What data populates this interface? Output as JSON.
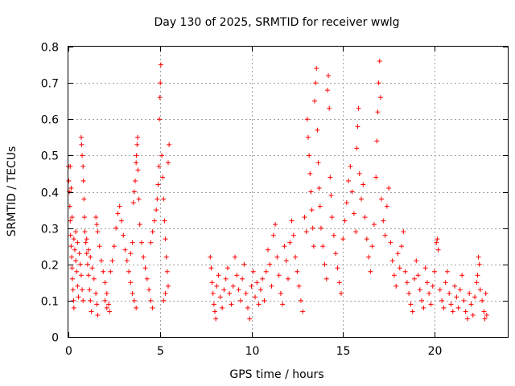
{
  "chart_data": {
    "type": "scatter",
    "title": "Day 130 of 2025, SRMTID for receiver wwlg",
    "xlabel": "GPS time / hours",
    "ylabel": "SRMTID / TECUs",
    "xlim": [
      0,
      24
    ],
    "ylim": [
      0,
      0.8
    ],
    "xticks": [
      0,
      5,
      10,
      15,
      20
    ],
    "yticks": [
      0,
      0.1,
      0.2,
      0.3,
      0.4,
      0.5,
      0.6,
      0.7,
      0.8
    ],
    "xtick_labels": [
      "0",
      "5",
      "10",
      "15",
      "20"
    ],
    "ytick_labels": [
      "0",
      "0.1",
      "0.2",
      "0.3",
      "0.4",
      "0.5",
      "0.6",
      "0.7",
      "0.8"
    ],
    "grid": true,
    "marker": "+",
    "color": "#ff0000",
    "series": [
      {
        "name": "wwlg",
        "points": [
          [
            0.0,
            0.47
          ],
          [
            0.02,
            0.43
          ],
          [
            0.05,
            0.4
          ],
          [
            0.08,
            0.36
          ],
          [
            0.1,
            0.32
          ],
          [
            0.12,
            0.28
          ],
          [
            0.15,
            0.25
          ],
          [
            0.18,
            0.22
          ],
          [
            0.2,
            0.19
          ],
          [
            0.22,
            0.16
          ],
          [
            0.25,
            0.13
          ],
          [
            0.28,
            0.1
          ],
          [
            0.3,
            0.08
          ],
          [
            0.1,
            0.47
          ],
          [
            0.15,
            0.41
          ],
          [
            0.2,
            0.33
          ],
          [
            0.3,
            0.27
          ],
          [
            0.35,
            0.24
          ],
          [
            0.4,
            0.21
          ],
          [
            0.45,
            0.18
          ],
          [
            0.5,
            0.14
          ],
          [
            0.55,
            0.11
          ],
          [
            0.4,
            0.29
          ],
          [
            0.5,
            0.26
          ],
          [
            0.6,
            0.23
          ],
          [
            0.65,
            0.2
          ],
          [
            0.7,
            0.17
          ],
          [
            0.75,
            0.13
          ],
          [
            0.8,
            0.1
          ],
          [
            0.7,
            0.55
          ],
          [
            0.72,
            0.53
          ],
          [
            0.75,
            0.5
          ],
          [
            0.8,
            0.47
          ],
          [
            0.82,
            0.43
          ],
          [
            0.85,
            0.38
          ],
          [
            0.88,
            0.33
          ],
          [
            0.9,
            0.29
          ],
          [
            0.95,
            0.26
          ],
          [
            1.0,
            0.23
          ],
          [
            1.05,
            0.2
          ],
          [
            1.1,
            0.17
          ],
          [
            1.15,
            0.13
          ],
          [
            1.2,
            0.1
          ],
          [
            1.25,
            0.07
          ],
          [
            1.0,
            0.27
          ],
          [
            1.1,
            0.24
          ],
          [
            1.2,
            0.22
          ],
          [
            1.3,
            0.19
          ],
          [
            1.4,
            0.16
          ],
          [
            1.5,
            0.12
          ],
          [
            1.55,
            0.09
          ],
          [
            1.6,
            0.06
          ],
          [
            1.5,
            0.33
          ],
          [
            1.55,
            0.31
          ],
          [
            1.6,
            0.29
          ],
          [
            1.7,
            0.25
          ],
          [
            1.8,
            0.21
          ],
          [
            1.9,
            0.18
          ],
          [
            2.0,
            0.15
          ],
          [
            2.1,
            0.12
          ],
          [
            2.2,
            0.09
          ],
          [
            2.25,
            0.07
          ],
          [
            2.0,
            0.1
          ],
          [
            2.1,
            0.08
          ],
          [
            2.3,
            0.18
          ],
          [
            2.4,
            0.21
          ],
          [
            2.5,
            0.25
          ],
          [
            2.6,
            0.3
          ],
          [
            2.7,
            0.34
          ],
          [
            2.8,
            0.36
          ],
          [
            2.9,
            0.32
          ],
          [
            3.0,
            0.28
          ],
          [
            3.1,
            0.24
          ],
          [
            3.2,
            0.21
          ],
          [
            3.3,
            0.18
          ],
          [
            3.4,
            0.15
          ],
          [
            3.5,
            0.12
          ],
          [
            3.6,
            0.1
          ],
          [
            3.7,
            0.08
          ],
          [
            3.4,
            0.23
          ],
          [
            3.5,
            0.26
          ],
          [
            3.55,
            0.37
          ],
          [
            3.6,
            0.4
          ],
          [
            3.65,
            0.43
          ],
          [
            3.7,
            0.48
          ],
          [
            3.72,
            0.5
          ],
          [
            3.75,
            0.53
          ],
          [
            3.78,
            0.55
          ],
          [
            3.8,
            0.46
          ],
          [
            3.85,
            0.38
          ],
          [
            3.9,
            0.31
          ],
          [
            4.0,
            0.26
          ],
          [
            4.1,
            0.22
          ],
          [
            4.2,
            0.19
          ],
          [
            4.3,
            0.16
          ],
          [
            4.4,
            0.13
          ],
          [
            4.5,
            0.1
          ],
          [
            4.6,
            0.08
          ],
          [
            4.5,
            0.26
          ],
          [
            4.6,
            0.29
          ],
          [
            4.7,
            0.32
          ],
          [
            4.8,
            0.35
          ],
          [
            4.85,
            0.38
          ],
          [
            4.9,
            0.42
          ],
          [
            4.95,
            0.47
          ],
          [
            4.97,
            0.6
          ],
          [
            5.0,
            0.66
          ],
          [
            5.02,
            0.7
          ],
          [
            5.05,
            0.75
          ],
          [
            5.1,
            0.5
          ],
          [
            5.15,
            0.44
          ],
          [
            5.2,
            0.38
          ],
          [
            5.25,
            0.32
          ],
          [
            5.3,
            0.27
          ],
          [
            5.35,
            0.22
          ],
          [
            5.4,
            0.18
          ],
          [
            5.45,
            0.14
          ],
          [
            5.5,
            0.53
          ],
          [
            5.45,
            0.48
          ],
          [
            5.3,
            0.12
          ],
          [
            5.2,
            0.1
          ],
          [
            7.75,
            0.22
          ],
          [
            7.8,
            0.19
          ],
          [
            7.85,
            0.15
          ],
          [
            7.9,
            0.12
          ],
          [
            7.95,
            0.09
          ],
          [
            8.0,
            0.07
          ],
          [
            8.05,
            0.05
          ],
          [
            8.1,
            0.14
          ],
          [
            8.2,
            0.17
          ],
          [
            8.3,
            0.11
          ],
          [
            8.4,
            0.08
          ],
          [
            8.5,
            0.13
          ],
          [
            8.6,
            0.16
          ],
          [
            8.7,
            0.19
          ],
          [
            8.8,
            0.12
          ],
          [
            8.9,
            0.09
          ],
          [
            9.0,
            0.14
          ],
          [
            9.1,
            0.22
          ],
          [
            9.2,
            0.17
          ],
          [
            9.3,
            0.13
          ],
          [
            9.4,
            0.1
          ],
          [
            9.5,
            0.16
          ],
          [
            9.6,
            0.2
          ],
          [
            9.7,
            0.12
          ],
          [
            9.8,
            0.08
          ],
          [
            9.9,
            0.05
          ],
          [
            10.0,
            0.14
          ],
          [
            10.1,
            0.18
          ],
          [
            10.2,
            0.11
          ],
          [
            10.3,
            0.15
          ],
          [
            10.4,
            0.09
          ],
          [
            10.5,
            0.13
          ],
          [
            10.6,
            0.16
          ],
          [
            10.7,
            0.1
          ],
          [
            10.8,
            0.18
          ],
          [
            10.9,
            0.24
          ],
          [
            11.0,
            0.2
          ],
          [
            11.1,
            0.14
          ],
          [
            11.2,
            0.28
          ],
          [
            11.3,
            0.31
          ],
          [
            11.4,
            0.22
          ],
          [
            11.5,
            0.17
          ],
          [
            11.6,
            0.12
          ],
          [
            11.7,
            0.09
          ],
          [
            11.8,
            0.25
          ],
          [
            11.9,
            0.21
          ],
          [
            12.0,
            0.16
          ],
          [
            12.1,
            0.26
          ],
          [
            12.2,
            0.32
          ],
          [
            12.3,
            0.28
          ],
          [
            12.4,
            0.22
          ],
          [
            12.5,
            0.18
          ],
          [
            12.6,
            0.14
          ],
          [
            12.7,
            0.1
          ],
          [
            12.8,
            0.07
          ],
          [
            12.9,
            0.33
          ],
          [
            13.0,
            0.29
          ],
          [
            13.05,
            0.6
          ],
          [
            13.1,
            0.55
          ],
          [
            13.15,
            0.5
          ],
          [
            13.2,
            0.45
          ],
          [
            13.25,
            0.4
          ],
          [
            13.3,
            0.35
          ],
          [
            13.35,
            0.3
          ],
          [
            13.4,
            0.25
          ],
          [
            13.45,
            0.65
          ],
          [
            13.5,
            0.7
          ],
          [
            13.55,
            0.74
          ],
          [
            13.6,
            0.57
          ],
          [
            13.65,
            0.48
          ],
          [
            13.7,
            0.41
          ],
          [
            13.75,
            0.36
          ],
          [
            13.8,
            0.3
          ],
          [
            13.9,
            0.25
          ],
          [
            14.0,
            0.2
          ],
          [
            14.1,
            0.16
          ],
          [
            14.15,
            0.68
          ],
          [
            14.2,
            0.72
          ],
          [
            14.25,
            0.63
          ],
          [
            14.3,
            0.44
          ],
          [
            14.35,
            0.39
          ],
          [
            14.4,
            0.33
          ],
          [
            14.5,
            0.28
          ],
          [
            14.6,
            0.23
          ],
          [
            14.7,
            0.19
          ],
          [
            14.8,
            0.15
          ],
          [
            14.9,
            0.12
          ],
          [
            15.0,
            0.27
          ],
          [
            15.1,
            0.32
          ],
          [
            15.2,
            0.37
          ],
          [
            15.3,
            0.43
          ],
          [
            15.4,
            0.47
          ],
          [
            15.5,
            0.4
          ],
          [
            15.6,
            0.34
          ],
          [
            15.7,
            0.29
          ],
          [
            15.75,
            0.52
          ],
          [
            15.8,
            0.58
          ],
          [
            15.85,
            0.63
          ],
          [
            15.9,
            0.45
          ],
          [
            16.0,
            0.38
          ],
          [
            16.1,
            0.42
          ],
          [
            16.2,
            0.33
          ],
          [
            16.3,
            0.27
          ],
          [
            16.4,
            0.22
          ],
          [
            16.5,
            0.18
          ],
          [
            16.6,
            0.25
          ],
          [
            16.7,
            0.31
          ],
          [
            16.8,
            0.44
          ],
          [
            16.85,
            0.54
          ],
          [
            16.9,
            0.62
          ],
          [
            16.95,
            0.7
          ],
          [
            17.0,
            0.76
          ],
          [
            17.05,
            0.66
          ],
          [
            17.1,
            0.38
          ],
          [
            17.2,
            0.32
          ],
          [
            17.3,
            0.28
          ],
          [
            17.4,
            0.36
          ],
          [
            17.5,
            0.41
          ],
          [
            17.6,
            0.26
          ],
          [
            17.7,
            0.21
          ],
          [
            17.8,
            0.17
          ],
          [
            17.9,
            0.14
          ],
          [
            18.0,
            0.23
          ],
          [
            18.1,
            0.19
          ],
          [
            18.2,
            0.25
          ],
          [
            18.3,
            0.29
          ],
          [
            18.4,
            0.18
          ],
          [
            18.5,
            0.15
          ],
          [
            18.6,
            0.12
          ],
          [
            18.7,
            0.09
          ],
          [
            18.8,
            0.07
          ],
          [
            18.9,
            0.16
          ],
          [
            19.0,
            0.21
          ],
          [
            19.1,
            0.17
          ],
          [
            19.2,
            0.13
          ],
          [
            19.3,
            0.1
          ],
          [
            19.4,
            0.08
          ],
          [
            19.5,
            0.19
          ],
          [
            19.6,
            0.15
          ],
          [
            19.7,
            0.12
          ],
          [
            19.8,
            0.09
          ],
          [
            19.9,
            0.14
          ],
          [
            20.0,
            0.18
          ],
          [
            20.1,
            0.26
          ],
          [
            20.15,
            0.27
          ],
          [
            20.2,
            0.24
          ],
          [
            20.3,
            0.13
          ],
          [
            20.4,
            0.1
          ],
          [
            20.5,
            0.08
          ],
          [
            20.6,
            0.15
          ],
          [
            20.7,
            0.18
          ],
          [
            20.8,
            0.12
          ],
          [
            20.9,
            0.09
          ],
          [
            21.0,
            0.07
          ],
          [
            21.1,
            0.14
          ],
          [
            21.2,
            0.11
          ],
          [
            21.3,
            0.08
          ],
          [
            21.4,
            0.13
          ],
          [
            21.5,
            0.17
          ],
          [
            21.6,
            0.1
          ],
          [
            21.7,
            0.07
          ],
          [
            21.8,
            0.05
          ],
          [
            21.9,
            0.12
          ],
          [
            22.0,
            0.09
          ],
          [
            22.1,
            0.06
          ],
          [
            22.2,
            0.11
          ],
          [
            22.3,
            0.15
          ],
          [
            22.35,
            0.17
          ],
          [
            22.4,
            0.22
          ],
          [
            22.45,
            0.2
          ],
          [
            22.5,
            0.13
          ],
          [
            22.6,
            0.1
          ],
          [
            22.7,
            0.07
          ],
          [
            22.75,
            0.05
          ],
          [
            22.8,
            0.12
          ],
          [
            22.85,
            0.06
          ]
        ]
      }
    ]
  }
}
